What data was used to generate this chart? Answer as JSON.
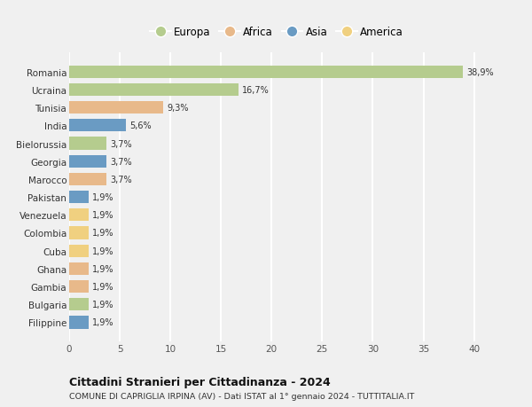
{
  "countries": [
    "Romania",
    "Ucraina",
    "Tunisia",
    "India",
    "Bielorussia",
    "Georgia",
    "Marocco",
    "Pakistan",
    "Venezuela",
    "Colombia",
    "Cuba",
    "Ghana",
    "Gambia",
    "Bulgaria",
    "Filippine"
  ],
  "values": [
    38.9,
    16.7,
    9.3,
    5.6,
    3.7,
    3.7,
    3.7,
    1.9,
    1.9,
    1.9,
    1.9,
    1.9,
    1.9,
    1.9,
    1.9
  ],
  "labels": [
    "38,9%",
    "16,7%",
    "9,3%",
    "5,6%",
    "3,7%",
    "3,7%",
    "3,7%",
    "1,9%",
    "1,9%",
    "1,9%",
    "1,9%",
    "1,9%",
    "1,9%",
    "1,9%",
    "1,9%"
  ],
  "continents": [
    "Europa",
    "Europa",
    "Africa",
    "Asia",
    "Europa",
    "Asia",
    "Africa",
    "Asia",
    "America",
    "America",
    "America",
    "Africa",
    "Africa",
    "Europa",
    "Asia"
  ],
  "continent_colors": {
    "Europa": "#b5cc8e",
    "Africa": "#e8b98a",
    "Asia": "#6a9bc3",
    "America": "#f0d080"
  },
  "legend_order": [
    "Europa",
    "Africa",
    "Asia",
    "America"
  ],
  "title": "Cittadini Stranieri per Cittadinanza - 2024",
  "subtitle": "COMUNE DI CAPRIGLIA IRPINA (AV) - Dati ISTAT al 1° gennaio 2024 - TUTTITALIA.IT",
  "xlim": [
    0,
    41
  ],
  "xticks": [
    0,
    5,
    10,
    15,
    20,
    25,
    30,
    35,
    40
  ],
  "background_color": "#f0f0f0",
  "grid_color": "#ffffff",
  "bar_height": 0.7
}
